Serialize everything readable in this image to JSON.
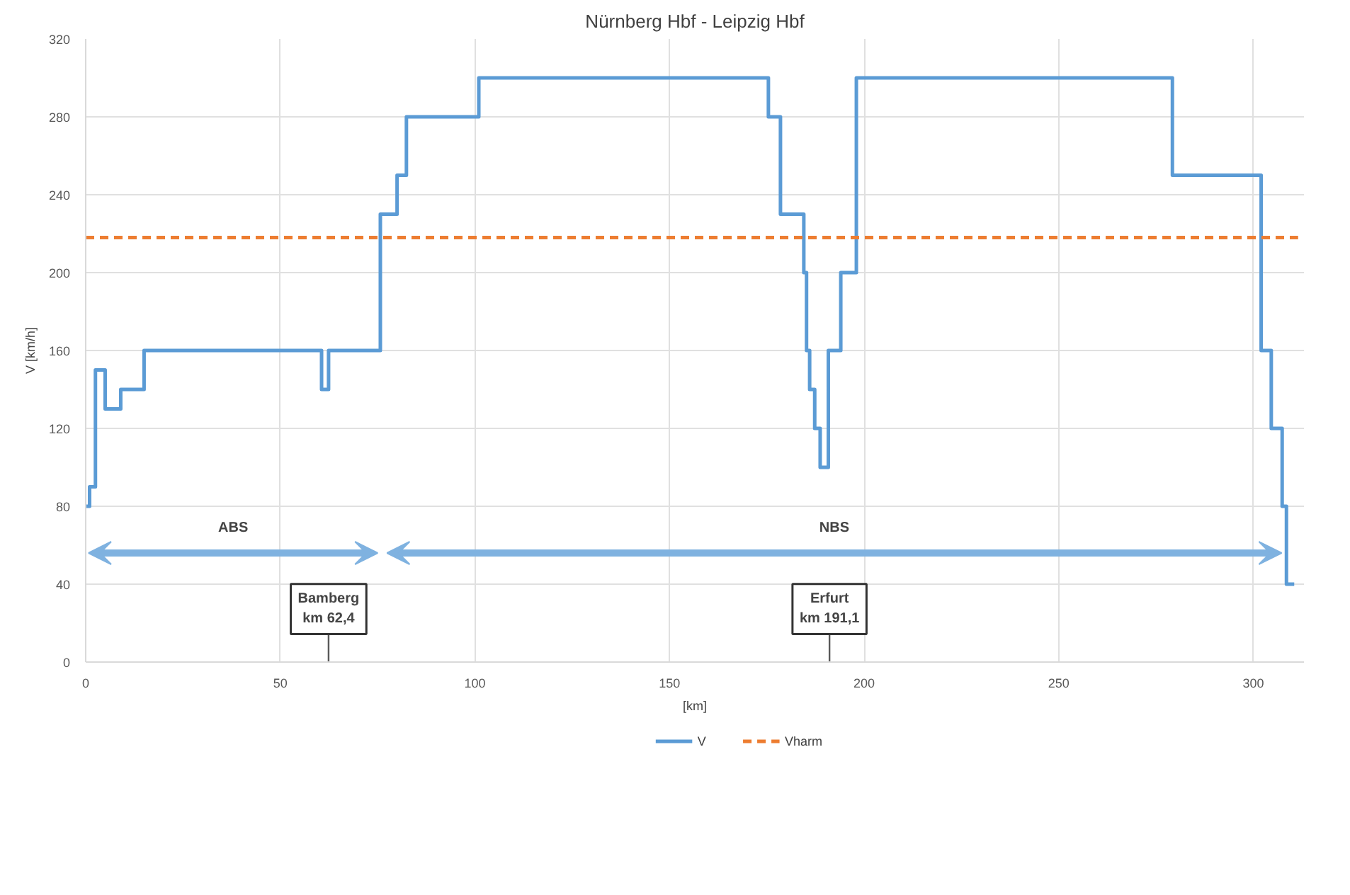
{
  "chart_data": {
    "type": "step",
    "title": "Nürnberg Hbf - Leipzig Hbf",
    "xlabel": "[km]",
    "ylabel": "V [km/h]",
    "xlim": [
      0,
      313
    ],
    "ylim": [
      0,
      320
    ],
    "xticks": [
      0,
      50,
      100,
      150,
      200,
      250,
      300
    ],
    "yticks": [
      0,
      40,
      80,
      120,
      160,
      200,
      240,
      280,
      320
    ],
    "grid": true,
    "legend": "bottom",
    "line_style": "solid",
    "marker": "none",
    "series": [
      {
        "name": "V",
        "color": "#5b9bd5",
        "x": [
          0,
          1,
          2.5,
          5,
          9,
          15,
          60.6,
          62.4,
          75.7,
          80,
          82.4,
          101,
          175.4,
          178.5,
          184.5,
          185.2,
          186,
          187.3,
          188.7,
          190.8,
          194,
          198,
          279.2,
          302,
          304.6,
          307.4,
          308.5,
          310.5
        ],
        "values": [
          80,
          90,
          150,
          130,
          140,
          160,
          140,
          160,
          230,
          250,
          280,
          300,
          280,
          230,
          200,
          160,
          140,
          120,
          100,
          160,
          200,
          300,
          250,
          160,
          120,
          80,
          40,
          40
        ]
      },
      {
        "name": "Vharm",
        "color": "#ed7d31",
        "type": "line",
        "line_style": "dashed",
        "x": [
          0,
          311.5
        ],
        "values": [
          218,
          218
        ]
      }
    ],
    "annotations": [
      "ABS",
      "NBS"
    ],
    "ref_lines": [
      {
        "axis": "x",
        "value": 62.4,
        "label": "Bamberg\nkm 62,4",
        "color": "#595959"
      },
      {
        "axis": "x",
        "value": 191.1,
        "label": "Erfurt\nkm 191,1",
        "color": "#595959"
      }
    ]
  }
}
